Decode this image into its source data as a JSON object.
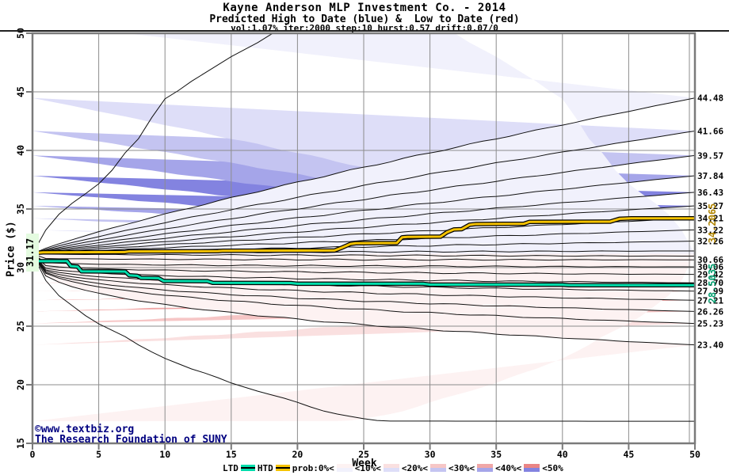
{
  "header": {
    "title": "Kayne Anderson MLP Investment Co. - 2014",
    "subtitle": "Predicted High to Date (blue) &  Low to Date (red)",
    "params": "vol:1.07% iter:2000 step:10 hurst:0.57 drift:0.07/0"
  },
  "axes": {
    "y_label": "Price ($)",
    "x_label": "Week",
    "x_ticks": [
      0,
      5,
      10,
      15,
      20,
      25,
      30,
      35,
      40,
      45,
      50
    ],
    "y_ticks": [
      15,
      20,
      25,
      30,
      35,
      40,
      45,
      50
    ],
    "x_range": [
      0,
      50
    ],
    "y_range": [
      15,
      50
    ]
  },
  "footer": {
    "copyright": "©www.textbiz.org",
    "foundation": "The Research Foundation of SUNY"
  },
  "legend": {
    "ltd": "LTD",
    "htd": "HTD",
    "prob_labels": [
      "prob:0%<",
      "<10%<",
      "<20%<",
      "<30%<",
      "<40%<",
      "<50%"
    ]
  },
  "annotations": {
    "start_label": "31.17",
    "htd_end_label": "34.2065",
    "ltd_end_label": "28.5035",
    "right_labels": [
      "44.48",
      "41.66",
      "39.57",
      "37.84",
      "36.43",
      "35.27",
      "34.21",
      "33.22",
      "32.26",
      "30.66",
      "30.06",
      "29.42",
      "28.70",
      "27.99",
      "27.21",
      "26.26",
      "25.23",
      "23.40"
    ],
    "right_label_prices": [
      44.48,
      41.66,
      39.57,
      37.84,
      36.43,
      35.27,
      34.21,
      33.22,
      32.26,
      30.66,
      30.06,
      29.42,
      28.7,
      27.99,
      27.21,
      26.26,
      25.23,
      23.4
    ]
  },
  "colors": {
    "blue_bands": [
      "#f1f1fc",
      "#dedef8",
      "#c4c4f1",
      "#a5a5e9",
      "#8383e0"
    ],
    "red_bands": [
      "#fdf2f2",
      "#fae0e0",
      "#f6c6c6",
      "#f0a7a7",
      "#ea8585"
    ],
    "grid": "#8c8c8c",
    "frame": "#7a7a7a",
    "curve": "#111111",
    "htd": "#f6c300",
    "ltd": "#00ddab",
    "htd_label": "#b08400",
    "ltd_label": "#009e6e",
    "navy": "#000080",
    "start_chip_bg": "#e4fbe0"
  },
  "chart_data": {
    "type": "area",
    "subtype": "monte-carlo-fan",
    "title": "Kayne Anderson MLP Investment Co. - 2014",
    "xlabel": "Week",
    "ylabel": "Price ($)",
    "xlim": [
      0,
      50
    ],
    "ylim": [
      15,
      50
    ],
    "grid": true,
    "start_week": 0,
    "start_price": 31.17,
    "high_decile_ends_week50": [
      32.26,
      33.22,
      34.21,
      35.27,
      36.43,
      37.84,
      39.57,
      41.66,
      44.48
    ],
    "low_decile_ends_week50": [
      30.66,
      30.06,
      29.42,
      28.7,
      27.99,
      27.21,
      26.26,
      25.23,
      23.4
    ],
    "high_max_path": [
      [
        0,
        31.17
      ],
      [
        0.5,
        32.3
      ],
      [
        1,
        33.2
      ],
      [
        2,
        34.55
      ],
      [
        3,
        35.5
      ],
      [
        4,
        36.3
      ],
      [
        5,
        37.15
      ],
      [
        6,
        38.3
      ],
      [
        7,
        39.8
      ],
      [
        8,
        41.0
      ],
      [
        9,
        42.8
      ],
      [
        10,
        44.4
      ],
      [
        11,
        45.1
      ],
      [
        12,
        45.9
      ],
      [
        13,
        46.6
      ],
      [
        14,
        47.3
      ],
      [
        15,
        48.0
      ],
      [
        16,
        48.6
      ],
      [
        17,
        49.2
      ],
      [
        18,
        49.9
      ],
      [
        19,
        50.6
      ],
      [
        50,
        50.9
      ]
    ],
    "low_min_path": [
      [
        0,
        31.17
      ],
      [
        0.3,
        30.1
      ],
      [
        0.6,
        29.5
      ],
      [
        1,
        28.9
      ],
      [
        1.5,
        28.2
      ],
      [
        2,
        27.6
      ],
      [
        3,
        26.75
      ],
      [
        4,
        25.9
      ],
      [
        5,
        25.2
      ],
      [
        6,
        24.65
      ],
      [
        7,
        24.1
      ],
      [
        8,
        23.4
      ],
      [
        9,
        22.8
      ],
      [
        10,
        22.25
      ],
      [
        11,
        21.8
      ],
      [
        12,
        21.35
      ],
      [
        13,
        21.0
      ],
      [
        14,
        20.6
      ],
      [
        15,
        20.15
      ],
      [
        16,
        19.8
      ],
      [
        17,
        19.45
      ],
      [
        18,
        19.15
      ],
      [
        19,
        18.85
      ],
      [
        20,
        18.5
      ],
      [
        21,
        18.1
      ],
      [
        22,
        17.75
      ],
      [
        23,
        17.5
      ],
      [
        24,
        17.3
      ],
      [
        25,
        17.1
      ],
      [
        26,
        16.95
      ],
      [
        27,
        16.9
      ],
      [
        50,
        16.88
      ]
    ],
    "high_zero_end": 31.42,
    "low_zero_end": 30.98,
    "series": [
      {
        "name": "HTD",
        "end_value": 34.2065,
        "points": [
          [
            0,
            31.17
          ],
          [
            0.3,
            31.26
          ],
          [
            0.8,
            31.3
          ],
          [
            7,
            31.33
          ],
          [
            7.3,
            31.38
          ],
          [
            14,
            31.4
          ],
          [
            14.4,
            31.44
          ],
          [
            22.8,
            31.46
          ],
          [
            23.4,
            31.72
          ],
          [
            24.0,
            32.02
          ],
          [
            24.4,
            32.08
          ],
          [
            27.5,
            32.1
          ],
          [
            27.9,
            32.58
          ],
          [
            28.3,
            32.62
          ],
          [
            30.8,
            32.64
          ],
          [
            31.3,
            33.02
          ],
          [
            31.8,
            33.25
          ],
          [
            32.4,
            33.28
          ],
          [
            33.0,
            33.66
          ],
          [
            33.5,
            33.72
          ],
          [
            37.1,
            33.74
          ],
          [
            37.5,
            33.9
          ],
          [
            43.6,
            33.92
          ],
          [
            44.3,
            34.16
          ],
          [
            45.2,
            34.21
          ],
          [
            50,
            34.21
          ]
        ]
      },
      {
        "name": "LTD",
        "end_value": 28.5035,
        "points": [
          [
            0,
            31.17
          ],
          [
            0.2,
            30.72
          ],
          [
            0.5,
            30.55
          ],
          [
            2.6,
            30.55
          ],
          [
            2.9,
            30.12
          ],
          [
            3.4,
            30.08
          ],
          [
            3.7,
            29.68
          ],
          [
            7.0,
            29.66
          ],
          [
            7.3,
            29.34
          ],
          [
            7.9,
            29.3
          ],
          [
            8.2,
            29.12
          ],
          [
            9.5,
            29.1
          ],
          [
            9.9,
            28.86
          ],
          [
            13.2,
            28.84
          ],
          [
            13.6,
            28.7
          ],
          [
            19.5,
            28.68
          ],
          [
            20,
            28.62
          ],
          [
            29.5,
            28.62
          ],
          [
            30,
            28.55
          ],
          [
            40,
            28.54
          ],
          [
            40.5,
            28.5
          ],
          [
            50,
            28.5
          ]
        ]
      }
    ],
    "legend_entries": [
      "LTD",
      "HTD",
      "prob:0%<",
      "<10%<",
      "<20%<",
      "<30%<",
      "<40%<",
      "<50%"
    ]
  }
}
